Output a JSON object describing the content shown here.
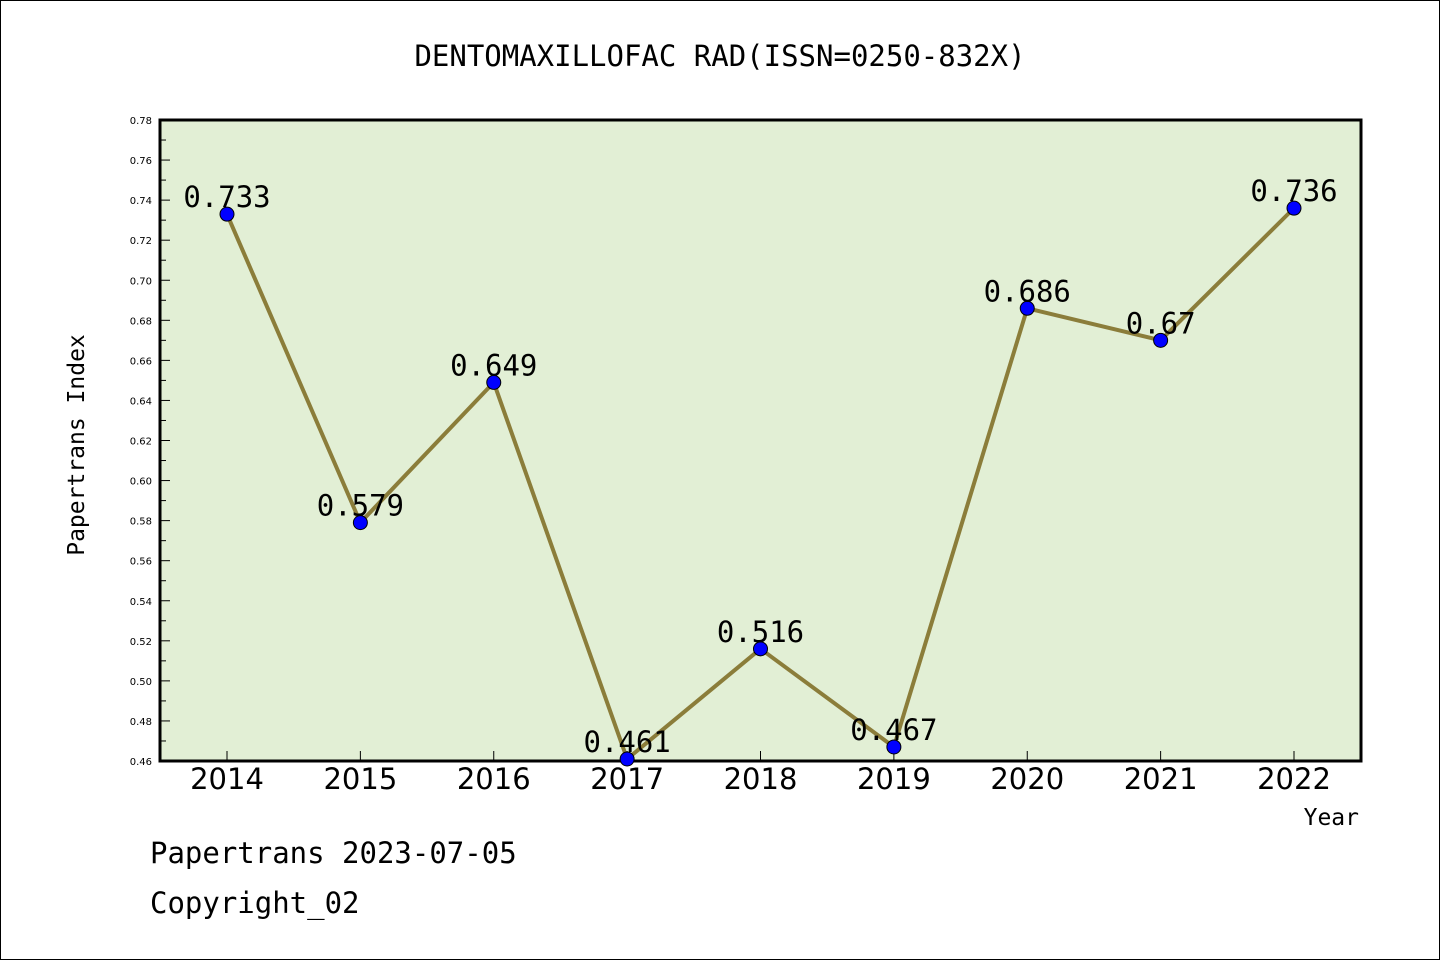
{
  "chart_data": {
    "type": "line",
    "title": "DENTOMAXILLOFAC RAD(ISSN=0250-832X)",
    "xlabel": "Year",
    "ylabel": "Papertrans Index",
    "categories": [
      "2014",
      "2015",
      "2016",
      "2017",
      "2018",
      "2019",
      "2020",
      "2021",
      "2022"
    ],
    "values": [
      0.733,
      0.579,
      0.649,
      0.461,
      0.516,
      0.467,
      0.686,
      0.67,
      0.736
    ],
    "data_labels": [
      "0.733",
      "0.579",
      "0.649",
      "0.461",
      "0.516",
      "0.467",
      "0.686",
      "0.67",
      "0.736"
    ],
    "ylim": [
      0.46,
      0.78
    ],
    "yticks": [
      "0.46",
      "0.48",
      "0.50",
      "0.52",
      "0.54",
      "0.56",
      "0.58",
      "0.60",
      "0.62",
      "0.64",
      "0.66",
      "0.68",
      "0.70",
      "0.72",
      "0.74",
      "0.76",
      "0.78"
    ],
    "grid": false,
    "legend": "none",
    "colors": {
      "line": "#8b7d3a",
      "marker": "#0000ff",
      "plot_background": "#e2efd5"
    }
  },
  "footer": {
    "date": "Papertrans 2023-07-05",
    "copyright": "Copyright_02"
  }
}
